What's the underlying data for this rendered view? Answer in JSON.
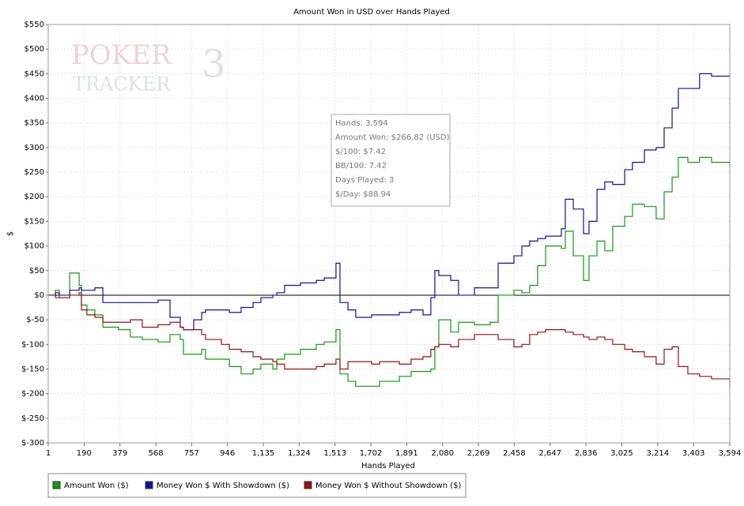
{
  "chart_data": {
    "type": "line",
    "title": "Amount Won in USD over Hands Played",
    "xlabel": "Hands Played",
    "ylabel": "$",
    "watermark": [
      "POKER",
      "TRACKER",
      "3"
    ],
    "x": [
      1,
      39,
      59,
      114,
      164,
      176,
      205,
      247,
      289,
      372,
      434,
      497,
      580,
      643,
      697,
      714,
      768,
      810,
      830,
      914,
      956,
      1018,
      1081,
      1122,
      1185,
      1206,
      1247,
      1331,
      1414,
      1456,
      1518,
      1539,
      1581,
      1622,
      1706,
      1748,
      1789,
      1852,
      1914,
      1977,
      2018,
      2039,
      2060,
      2123,
      2164,
      2248,
      2331,
      2373,
      2456,
      2498,
      2539,
      2581,
      2623,
      2706,
      2727,
      2769,
      2823,
      2852,
      2894,
      2935,
      2977,
      3040,
      3081,
      3144,
      3206,
      3248,
      3290,
      3323,
      3373,
      3435,
      3498,
      3594
    ],
    "series": [
      {
        "name": "Amount Won ($)",
        "color": "#119911",
        "values": [
          0,
          10,
          -5,
          45,
          20,
          -20,
          -30,
          -40,
          -65,
          -70,
          -85,
          -90,
          -95,
          -80,
          -90,
          -120,
          -120,
          -110,
          -130,
          -130,
          -145,
          -160,
          -150,
          -140,
          -150,
          -130,
          -120,
          -110,
          -100,
          -95,
          -70,
          -160,
          -175,
          -185,
          -185,
          -175,
          -175,
          -165,
          -155,
          -155,
          -150,
          -105,
          -50,
          -75,
          -55,
          -60,
          -55,
          0,
          10,
          5,
          20,
          60,
          100,
          95,
          130,
          80,
          30,
          80,
          110,
          90,
          140,
          160,
          185,
          180,
          155,
          210,
          240,
          280,
          270,
          280,
          270,
          260
        ]
      },
      {
        "name": "Money Won $ With Showdown ($)",
        "color": "#11119a",
        "values": [
          0,
          5,
          0,
          10,
          15,
          10,
          10,
          15,
          -15,
          -15,
          -15,
          -15,
          -10,
          -45,
          -65,
          -70,
          -50,
          -35,
          -30,
          -30,
          -35,
          -25,
          -15,
          -5,
          0,
          5,
          20,
          25,
          30,
          35,
          65,
          -15,
          -30,
          -45,
          -40,
          -40,
          -40,
          -35,
          -30,
          -40,
          -5,
          50,
          40,
          30,
          0,
          15,
          15,
          65,
          80,
          100,
          110,
          115,
          120,
          135,
          195,
          175,
          125,
          150,
          215,
          230,
          225,
          255,
          270,
          295,
          300,
          340,
          380,
          420,
          420,
          450,
          445,
          450
        ]
      },
      {
        "name": "Money Won $ Without Showdown ($)",
        "color": "#9a1111",
        "values": [
          0,
          -5,
          -5,
          0,
          5,
          -30,
          -40,
          -45,
          -55,
          -55,
          -50,
          -65,
          -60,
          -55,
          -65,
          -70,
          -70,
          -80,
          -90,
          -100,
          -110,
          -115,
          -125,
          -130,
          -135,
          -140,
          -150,
          -150,
          -145,
          -140,
          -130,
          -150,
          -135,
          -135,
          -140,
          -135,
          -135,
          -140,
          -130,
          -125,
          -110,
          -105,
          -100,
          -105,
          -90,
          -80,
          -80,
          -90,
          -105,
          -100,
          -80,
          -75,
          -70,
          -70,
          -75,
          -80,
          -85,
          -90,
          -85,
          -90,
          -100,
          -110,
          -115,
          -125,
          -140,
          -110,
          -105,
          -145,
          -160,
          -165,
          -170,
          -190
        ]
      }
    ],
    "xlim": [
      1,
      3594
    ],
    "xticks": [
      1,
      190,
      379,
      568,
      757,
      946,
      {
        "value": 1135,
        "label": "1,135"
      },
      {
        "value": 1324,
        "label": "1,324"
      },
      {
        "value": 1513,
        "label": "1,513"
      },
      {
        "value": 1702,
        "label": "1,702"
      },
      {
        "value": 1891,
        "label": "1,891"
      },
      {
        "value": 2080,
        "label": "2,080"
      },
      {
        "value": 2269,
        "label": "2,269"
      },
      {
        "value": 2458,
        "label": "2,458"
      },
      {
        "value": 2647,
        "label": "2,647"
      },
      {
        "value": 2836,
        "label": "2,836"
      },
      {
        "value": 3025,
        "label": "3,025"
      },
      {
        "value": 3214,
        "label": "3,214"
      },
      {
        "value": 3403,
        "label": "3,403"
      },
      {
        "value": 3594,
        "label": "3,594"
      }
    ],
    "ylim": [
      -300,
      550
    ],
    "yticks": [
      {
        "value": -300,
        "label": "$-300"
      },
      {
        "value": -250,
        "label": "$-250"
      },
      {
        "value": -200,
        "label": "$-200"
      },
      {
        "value": -150,
        "label": "$-150"
      },
      {
        "value": -100,
        "label": "$-100"
      },
      {
        "value": -50,
        "label": "$-50"
      },
      {
        "value": 0,
        "label": "$0"
      },
      {
        "value": 50,
        "label": "$50"
      },
      {
        "value": 100,
        "label": "$100"
      },
      {
        "value": 150,
        "label": "$150"
      },
      {
        "value": 200,
        "label": "$200"
      },
      {
        "value": 250,
        "label": "$250"
      },
      {
        "value": 300,
        "label": "$300"
      },
      {
        "value": 350,
        "label": "$350"
      },
      {
        "value": 400,
        "label": "$400"
      },
      {
        "value": 450,
        "label": "$450"
      },
      {
        "value": 500,
        "label": "$500"
      },
      {
        "value": 550,
        "label": "$550"
      }
    ],
    "grid": true,
    "step": true,
    "legend": "bottom-left",
    "tooltip": [
      "Hands: 3,594",
      "Amount Won: $266.82 (USD)",
      "$/100: $7.42",
      "BB/100: 7.42",
      "Days Played: 3",
      "$/Day: $88.94"
    ]
  }
}
